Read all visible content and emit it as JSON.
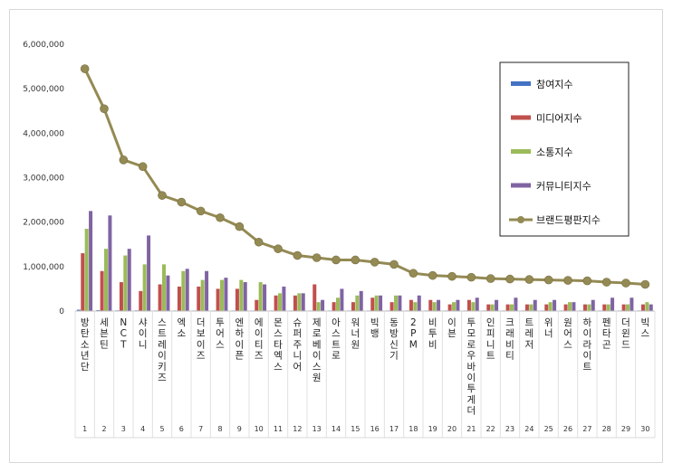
{
  "chart_data": {
    "type": "bar",
    "categories": [
      "방탄소년단",
      "세븐틴",
      "NCT",
      "샤이니",
      "스트레이키즈",
      "엑소",
      "더보이즈",
      "투어스",
      "엔하이픈",
      "에이티즈",
      "몬스타엑스",
      "슈퍼주니어",
      "제로베이스원",
      "아스트로",
      "워너원",
      "빅뱅",
      "동방신기",
      "2PM",
      "비투비",
      "이븐",
      "투모로우바이투게더",
      "인피니트",
      "크래비티",
      "트레저",
      "위너",
      "원어스",
      "하이라이트",
      "펜타곤",
      "더윈드",
      "빅스"
    ],
    "ranks": [
      "1",
      "2",
      "3",
      "4",
      "5",
      "6",
      "7",
      "8",
      "9",
      "10",
      "11",
      "12",
      "13",
      "14",
      "15",
      "16",
      "17",
      "18",
      "19",
      "20",
      "21",
      "22",
      "23",
      "24",
      "25",
      "26",
      "27",
      "28",
      "29",
      "30"
    ],
    "series": [
      {
        "name": "참여지수",
        "kind": "bar",
        "color": "#4472c4",
        "values": [
          30000,
          20000,
          15000,
          15000,
          10000,
          10000,
          10000,
          5000,
          5000,
          5000,
          5000,
          5000,
          5000,
          5000,
          5000,
          5000,
          5000,
          5000,
          5000,
          5000,
          5000,
          5000,
          5000,
          5000,
          5000,
          5000,
          5000,
          5000,
          5000,
          5000
        ]
      },
      {
        "name": "미디어지수",
        "kind": "bar",
        "color": "#c0504d",
        "values": [
          1300000,
          900000,
          650000,
          450000,
          600000,
          550000,
          550000,
          500000,
          500000,
          250000,
          350000,
          350000,
          600000,
          200000,
          200000,
          300000,
          200000,
          250000,
          250000,
          150000,
          250000,
          150000,
          150000,
          150000,
          150000,
          150000,
          150000,
          150000,
          150000,
          150000
        ]
      },
      {
        "name": "소통지수",
        "kind": "bar",
        "color": "#9bbb59",
        "values": [
          1850000,
          1400000,
          1250000,
          1050000,
          1050000,
          900000,
          700000,
          700000,
          700000,
          650000,
          400000,
          400000,
          200000,
          300000,
          350000,
          350000,
          350000,
          200000,
          200000,
          200000,
          200000,
          150000,
          150000,
          150000,
          200000,
          200000,
          150000,
          150000,
          150000,
          200000
        ]
      },
      {
        "name": "커뮤니티지수",
        "kind": "bar",
        "color": "#8064a2",
        "values": [
          2250000,
          2150000,
          1400000,
          1700000,
          800000,
          950000,
          900000,
          750000,
          650000,
          600000,
          550000,
          400000,
          250000,
          500000,
          450000,
          350000,
          350000,
          350000,
          250000,
          250000,
          300000,
          250000,
          300000,
          250000,
          250000,
          200000,
          250000,
          300000,
          300000,
          150000
        ]
      },
      {
        "name": "브랜드평판지수",
        "kind": "line",
        "color": "#948a54",
        "values": [
          5450000,
          4550000,
          3400000,
          3250000,
          2600000,
          2450000,
          2250000,
          2100000,
          1900000,
          1550000,
          1400000,
          1250000,
          1200000,
          1150000,
          1150000,
          1100000,
          1050000,
          850000,
          800000,
          780000,
          760000,
          730000,
          720000,
          710000,
          700000,
          690000,
          680000,
          650000,
          630000,
          600000
        ]
      }
    ],
    "yticks": [
      "0",
      "1,000,000",
      "2,000,000",
      "3,000,000",
      "4,000,000",
      "5,000,000",
      "6,000,000"
    ],
    "ylim": [
      0,
      6000000
    ],
    "legend_position": "top-right",
    "grid": false
  }
}
